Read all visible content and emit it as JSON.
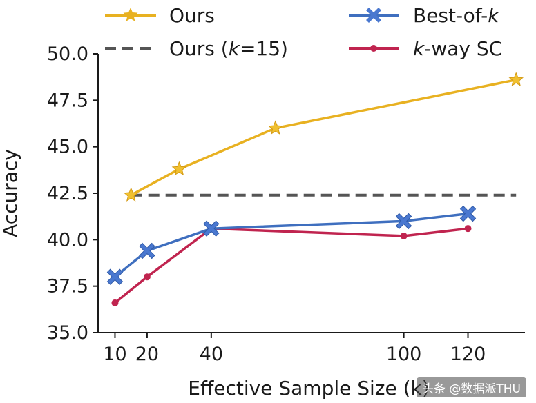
{
  "chart_data": {
    "type": "line",
    "xlabel": "Effective Sample Size (k)",
    "ylabel": "Accuracy",
    "xlim": [
      0,
      140
    ],
    "ylim": [
      35.0,
      50.0
    ],
    "xticks": [
      10,
      20,
      40,
      100,
      120
    ],
    "yticks": [
      "35.0",
      "37.5",
      "40.0",
      "42.5",
      "45.0",
      "47.5",
      "50.0"
    ],
    "legend_position": "top",
    "series": [
      {
        "name": "Ours",
        "color": "#e8b121",
        "marker": "star",
        "x": [
          15,
          30,
          60,
          135
        ],
        "y": [
          42.4,
          43.8,
          46.0,
          48.6
        ]
      },
      {
        "name": "Ours (k=15)",
        "color": "#555555",
        "marker": "none",
        "dashed": true,
        "x": [
          15,
          135
        ],
        "y": [
          42.4,
          42.4
        ]
      },
      {
        "name": "Best-of-k",
        "color": "#3f6fbf",
        "marker": "x",
        "x": [
          10,
          20,
          40,
          100,
          120
        ],
        "y": [
          38.0,
          39.4,
          40.6,
          41.0,
          41.4
        ]
      },
      {
        "name": "k-way SC",
        "color": "#c0244f",
        "marker": "dot",
        "x": [
          10,
          20,
          40,
          100,
          120
        ],
        "y": [
          36.6,
          38.0,
          40.6,
          40.2,
          40.6
        ]
      }
    ]
  },
  "watermark": "头条 @数据派THU"
}
